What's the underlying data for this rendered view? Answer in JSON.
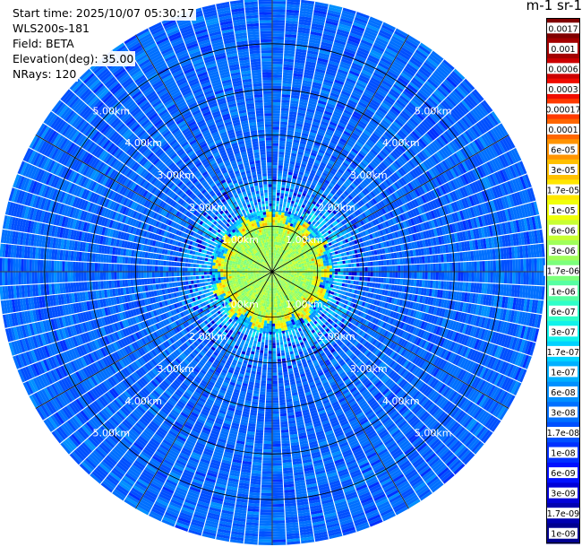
{
  "info": {
    "start_time": "Start time: 2025/10/07 05:30:17",
    "device": "WLS200s-181",
    "field": "Field: BETA",
    "elevation": "Elevation(deg): 35.00",
    "nrays": "NRays: 120"
  },
  "chart_data": {
    "type": "heatmap",
    "projection": "polar-ppi",
    "n_rays": 120,
    "elevation_deg": 35.0,
    "range_max_km": 6.0,
    "range_rings_km": [
      1,
      2,
      3,
      4,
      5
    ],
    "range_labels": [
      "1.00km",
      "2.00km",
      "3.00km",
      "4.00km",
      "5.00km"
    ],
    "azimuth_lines_deg": [
      0,
      30,
      60,
      90,
      120,
      150,
      180,
      210,
      240,
      270,
      300,
      330
    ],
    "colorbar": {
      "title": "m-1 sr-1",
      "scale": "log",
      "labels": [
        "0.0017",
        "0.001",
        "0.0006",
        "0.0003",
        "0.00017",
        "0.0001",
        "6e-05",
        "3e-05",
        "1.7e-05",
        "1e-05",
        "6e-06",
        "3e-06",
        "1.7e-06",
        "1e-06",
        "6e-07",
        "3e-07",
        "1.7e-07",
        "1e-07",
        "6e-08",
        "3e-08",
        "1.7e-08",
        "1e-08",
        "6e-09",
        "3e-09",
        "1.7e-09",
        "1e-09"
      ],
      "colors": [
        "#800000",
        "#a30000",
        "#cc0000",
        "#f00c00",
        "#ff3a00",
        "#ff6600",
        "#ff9400",
        "#ffc000",
        "#ffe600",
        "#f0ff0a",
        "#c8ff32",
        "#a0ff5a",
        "#7cff7c",
        "#56ffa2",
        "#2effc8",
        "#10f2ea",
        "#00d2ff",
        "#00b0ff",
        "#0090ff",
        "#0070ff",
        "#0050ff",
        "#0030ff",
        "#0010ff",
        "#0000d8",
        "#0000b0",
        "#000090"
      ]
    },
    "profile_summary": {
      "near_range_km": [
        0,
        1.0
      ],
      "near_value": "3e-06",
      "ring_band_km": [
        1.0,
        1.2
      ],
      "ring_value": "3e-05",
      "far_value": "3e-08",
      "grid": true
    }
  }
}
